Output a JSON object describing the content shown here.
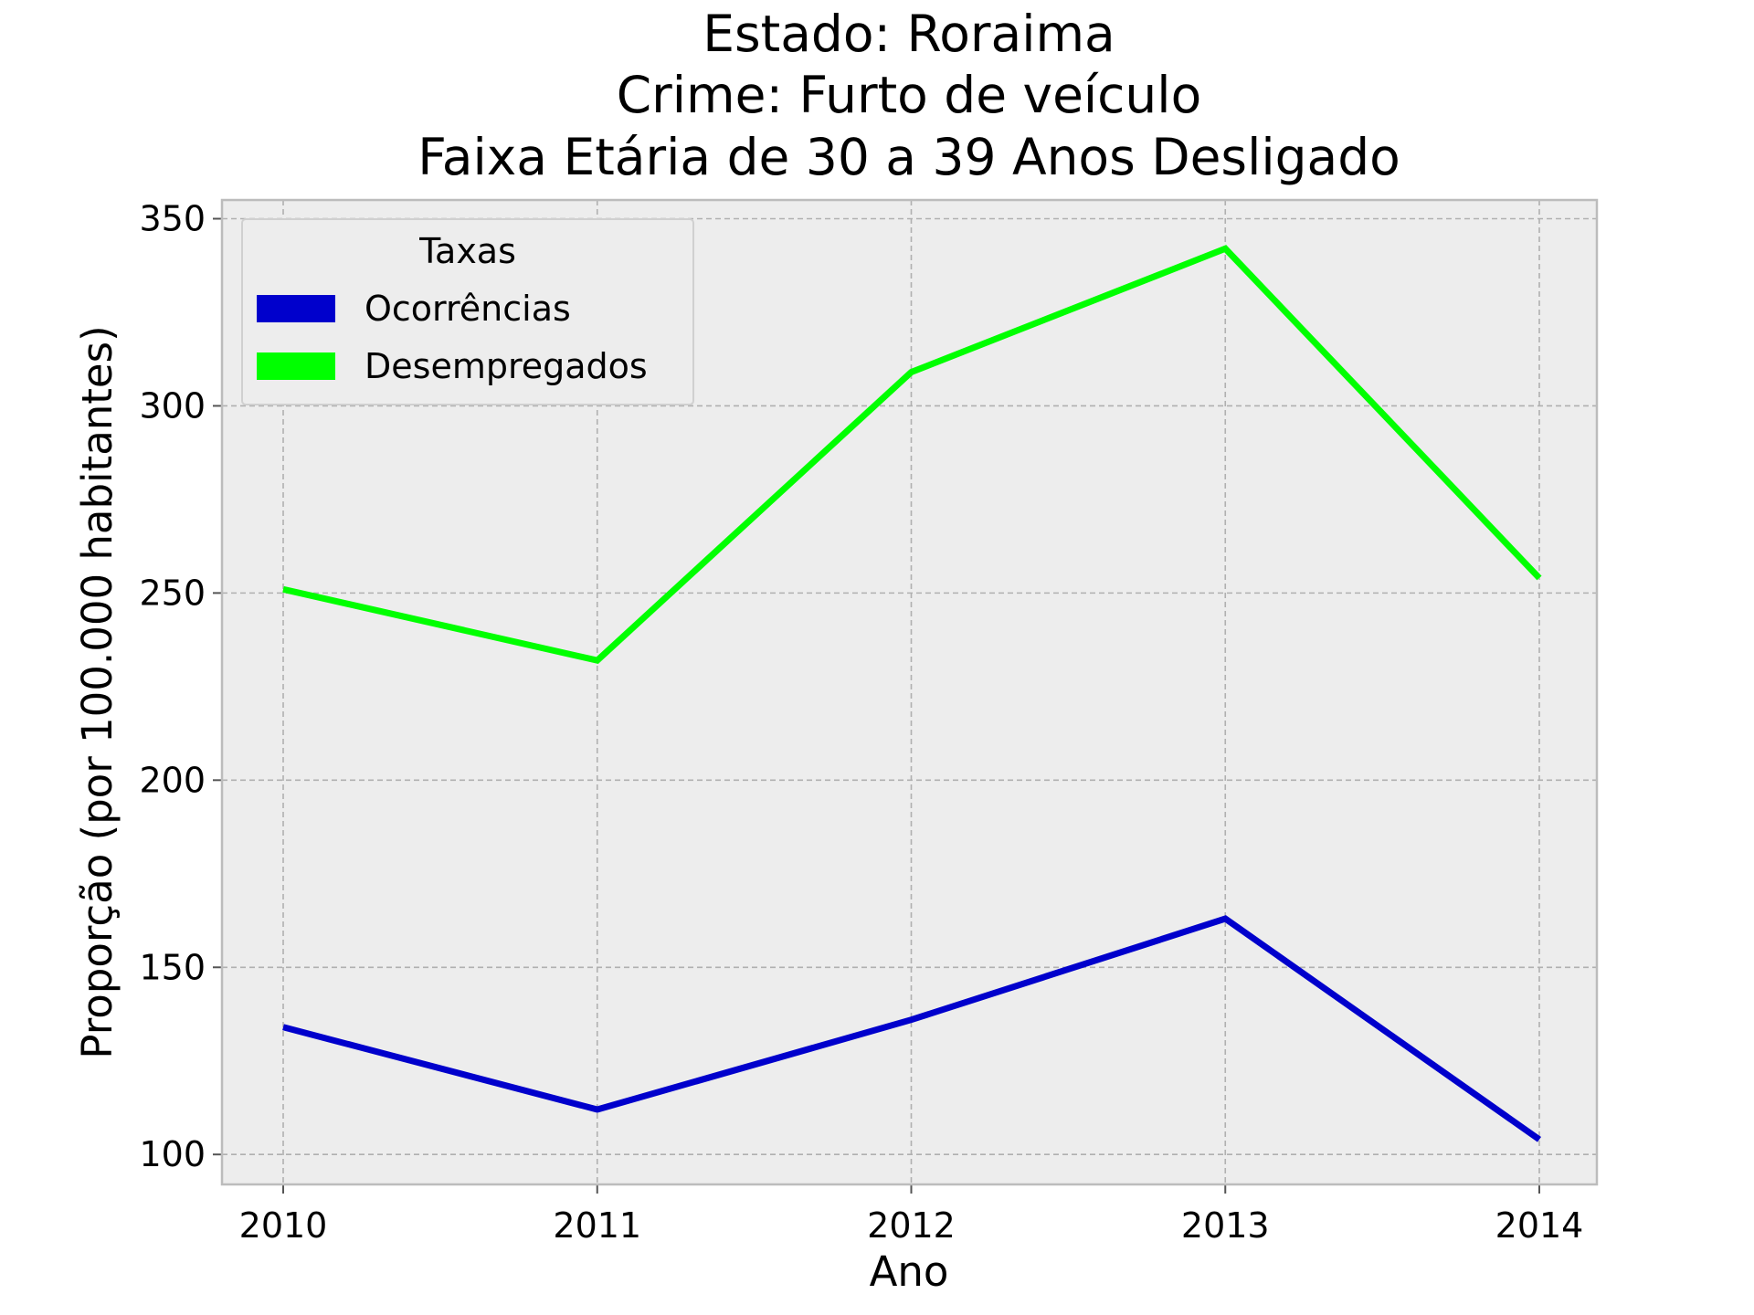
{
  "chart_data": {
    "type": "line",
    "title": [
      "Estado: Roraima",
      "Crime: Furto de veículo",
      "Faixa Etária de 30 a 39 Anos   Desligado"
    ],
    "xlabel": "Ano",
    "ylabel": "Proporção (por 100.000 habitantes)",
    "x": [
      "2010",
      "2011",
      "2012",
      "2013",
      "2014"
    ],
    "yticks": [
      100,
      150,
      200,
      250,
      300,
      350
    ],
    "ylim": [
      92,
      355
    ],
    "grid": true,
    "legend": {
      "title": "Taxas",
      "placement": "top-left"
    },
    "series": [
      {
        "name": "Ocorrências",
        "color": "#0000cc",
        "values": [
          134,
          112,
          136,
          163,
          104
        ]
      },
      {
        "name": "Desempregados",
        "color": "#00ff00",
        "values": [
          251,
          232,
          309,
          342,
          254
        ]
      }
    ],
    "colors": {
      "plot_background": "#ededed",
      "frame": "#bcbcbc",
      "legend_background": "#ededed",
      "legend_border": "#d0d0d0"
    }
  }
}
